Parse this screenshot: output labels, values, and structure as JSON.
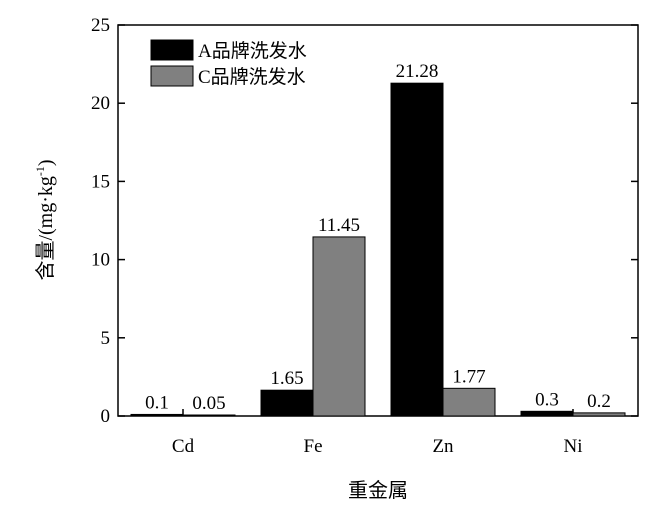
{
  "chart_data": {
    "type": "bar",
    "categories": [
      "Cd",
      "Fe",
      "Zn",
      "Ni"
    ],
    "series": [
      {
        "name": "A品牌洗发水",
        "color": "#000000",
        "values": [
          0.1,
          1.65,
          21.28,
          0.3
        ],
        "labels": [
          "0.1",
          "1.65",
          "21.28",
          "0.3"
        ]
      },
      {
        "name": "C品牌洗发水",
        "color": "#808080",
        "values": [
          0.05,
          11.45,
          1.77,
          0.2
        ],
        "labels": [
          "0.05",
          "11.45",
          "1.77",
          "0.2"
        ]
      }
    ],
    "xlabel": "重金属",
    "ylabel_main": "含量/(mg·kg",
    "ylabel_sup": "-1",
    "ylabel_close": ")",
    "ylim": [
      0,
      25
    ],
    "yticks": [
      0,
      5,
      10,
      15,
      20,
      25
    ],
    "ytick_labels": [
      "0",
      "5",
      "10",
      "15",
      "20",
      "25"
    ],
    "legend_position": "top-left",
    "grid": false
  }
}
